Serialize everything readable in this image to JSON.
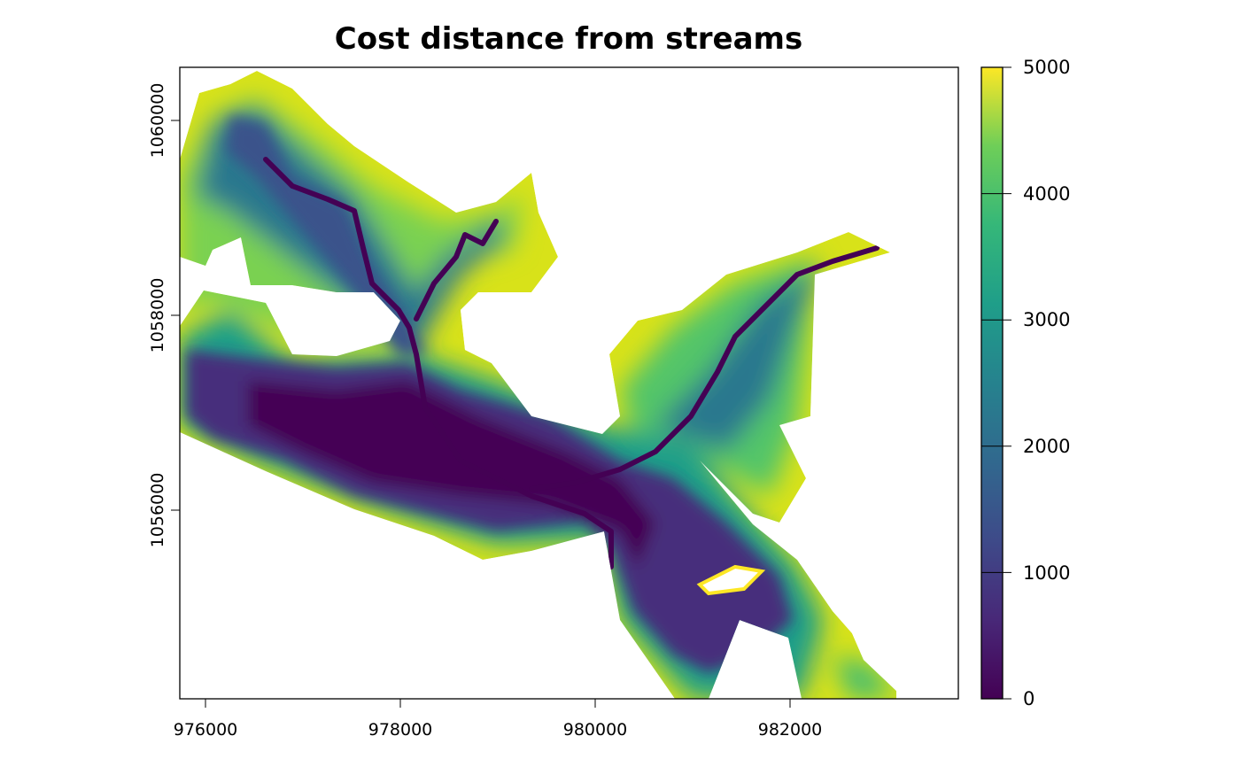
{
  "title": "Cost distance from streams",
  "chart_data": {
    "type": "heatmap",
    "title": "Cost distance from streams",
    "xlabel": "",
    "ylabel": "",
    "x_ticks": [
      "976000",
      "978000",
      "980000",
      "982000"
    ],
    "y_ticks": [
      "1056000",
      "1058000",
      "1060000"
    ],
    "x_tick_values": [
      976000,
      978000,
      980000,
      982000
    ],
    "y_tick_values": [
      1056000,
      1058000,
      1060000
    ],
    "xlim": [
      975730,
      983730
    ],
    "ylim": [
      1053550,
      1060040
    ],
    "colorbar": {
      "palette": "viridis",
      "range": [
        0,
        5000
      ],
      "tick_labels": [
        "0",
        "1000",
        "2000",
        "3000",
        "4000",
        "5000"
      ],
      "tick_values": [
        0,
        1000,
        2000,
        3000,
        4000,
        5000
      ]
    },
    "colors": {
      "low": "#440154",
      "q1": "#3b528b",
      "mid": "#21908c",
      "q3": "#5dc863",
      "high": "#fde725"
    }
  }
}
